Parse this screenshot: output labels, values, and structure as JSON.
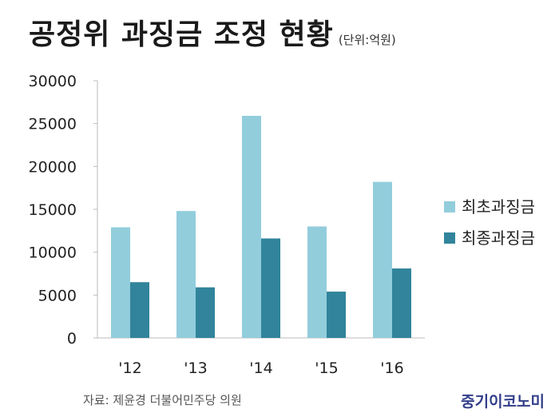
{
  "title": "공정위 과징금 조정 현황",
  "unit": "(단위:억원)",
  "source": "자료: 제윤경 더불어민주당 의원",
  "logo": "중기이코노미",
  "colors": {
    "initial": "#92cddc",
    "final": "#31849b",
    "axis": "#bbbbbb"
  },
  "chart_data": {
    "type": "bar",
    "categories": [
      "'12",
      "'13",
      "'14",
      "'15",
      "'16"
    ],
    "series": [
      {
        "name": "최초과징금",
        "values": [
          12900,
          14800,
          25900,
          13000,
          18200
        ]
      },
      {
        "name": "최종과징금",
        "values": [
          6500,
          5900,
          11600,
          5400,
          8100
        ]
      }
    ],
    "yticks": [
      "0",
      "5000",
      "10000",
      "15000",
      "20000",
      "25000",
      "30000"
    ],
    "ylim": [
      0,
      30000
    ],
    "legend": "right",
    "grid": false
  }
}
